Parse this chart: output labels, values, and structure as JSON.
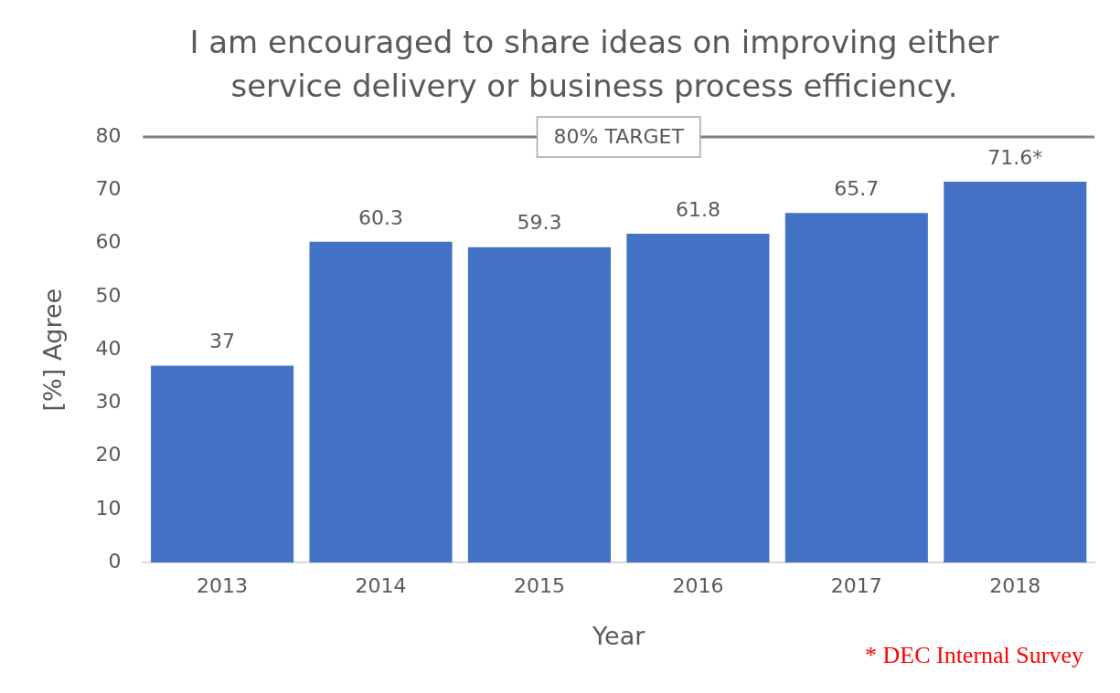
{
  "chart_data": {
    "type": "bar",
    "title": "I am encouraged to share ideas on improving either service delivery or business process efficiency.",
    "xlabel": "Year",
    "ylabel": "[%] Agree",
    "categories": [
      "2013",
      "2014",
      "2015",
      "2016",
      "2017",
      "2018"
    ],
    "values": [
      37,
      60.3,
      59.3,
      61.8,
      65.7,
      71.6
    ],
    "value_labels": [
      "37",
      "60.3",
      "59.3",
      "61.8",
      "65.7",
      "71.6*"
    ],
    "color": "#4472c4",
    "ylim": [
      0,
      80
    ],
    "yticks": [
      0,
      10,
      20,
      30,
      40,
      50,
      60,
      70,
      80
    ],
    "grid": false,
    "legend": false,
    "ref_lines": [
      {
        "axis": "y",
        "value": 80,
        "label": "80% TARGET",
        "color": "#7f7f7f"
      }
    ],
    "annotations": [
      "* DEC Internal Survey"
    ]
  }
}
